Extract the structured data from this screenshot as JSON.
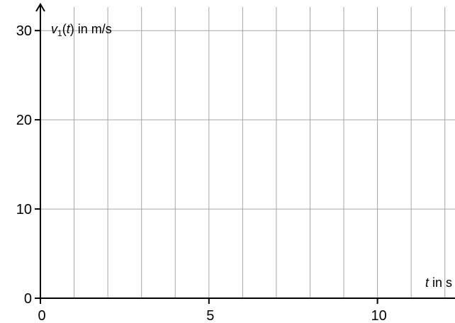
{
  "chart_data": {
    "type": "line",
    "series": [],
    "xlabel": "t in s",
    "ylabel": "v1(t) in m/s",
    "xlim": [
      0,
      12.3
    ],
    "ylim": [
      0,
      32
    ],
    "x_ticks": [
      0,
      5,
      10
    ],
    "y_ticks": [
      0,
      10,
      20,
      30
    ],
    "x_grid_step": 1,
    "y_grid_step": 10,
    "grid": true,
    "colors": {
      "grid": "#a6a6a6",
      "axis": "#000000"
    }
  }
}
